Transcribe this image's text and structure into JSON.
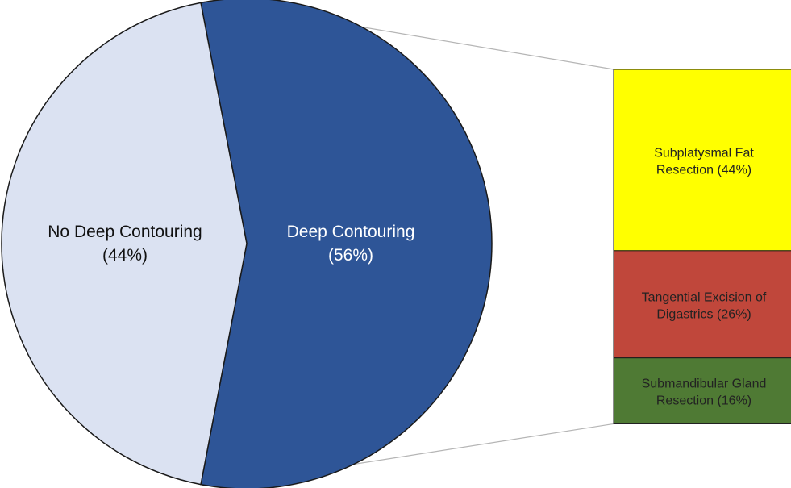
{
  "chart_data": {
    "type": "pie",
    "title": "",
    "slices": [
      {
        "label_line1": "Deep Contouring",
        "label_line2": "(56%)",
        "value": 56,
        "color": "#2e5597",
        "text_color": "#ffffff"
      },
      {
        "label_line1": "No Deep Contouring",
        "label_line2": "(44%)",
        "value": 44,
        "color": "#dbe2f2",
        "text_color": "#111111"
      }
    ],
    "breakdown": {
      "parent": "Deep Contouring",
      "type": "stacked-bar",
      "segments": [
        {
          "label_line1": "Subplatysmal Fat",
          "label_line2": "Resection (44%)",
          "value": 44,
          "color": "#ffff00"
        },
        {
          "label_line1": "Tangential Excision of",
          "label_line2": "Digastrics (26%)",
          "value": 26,
          "color": "#c0473b"
        },
        {
          "label_line1": "Submandibular Gland",
          "label_line2": "Resection (16%)",
          "value": 16,
          "color": "#4f7a34"
        }
      ]
    }
  }
}
